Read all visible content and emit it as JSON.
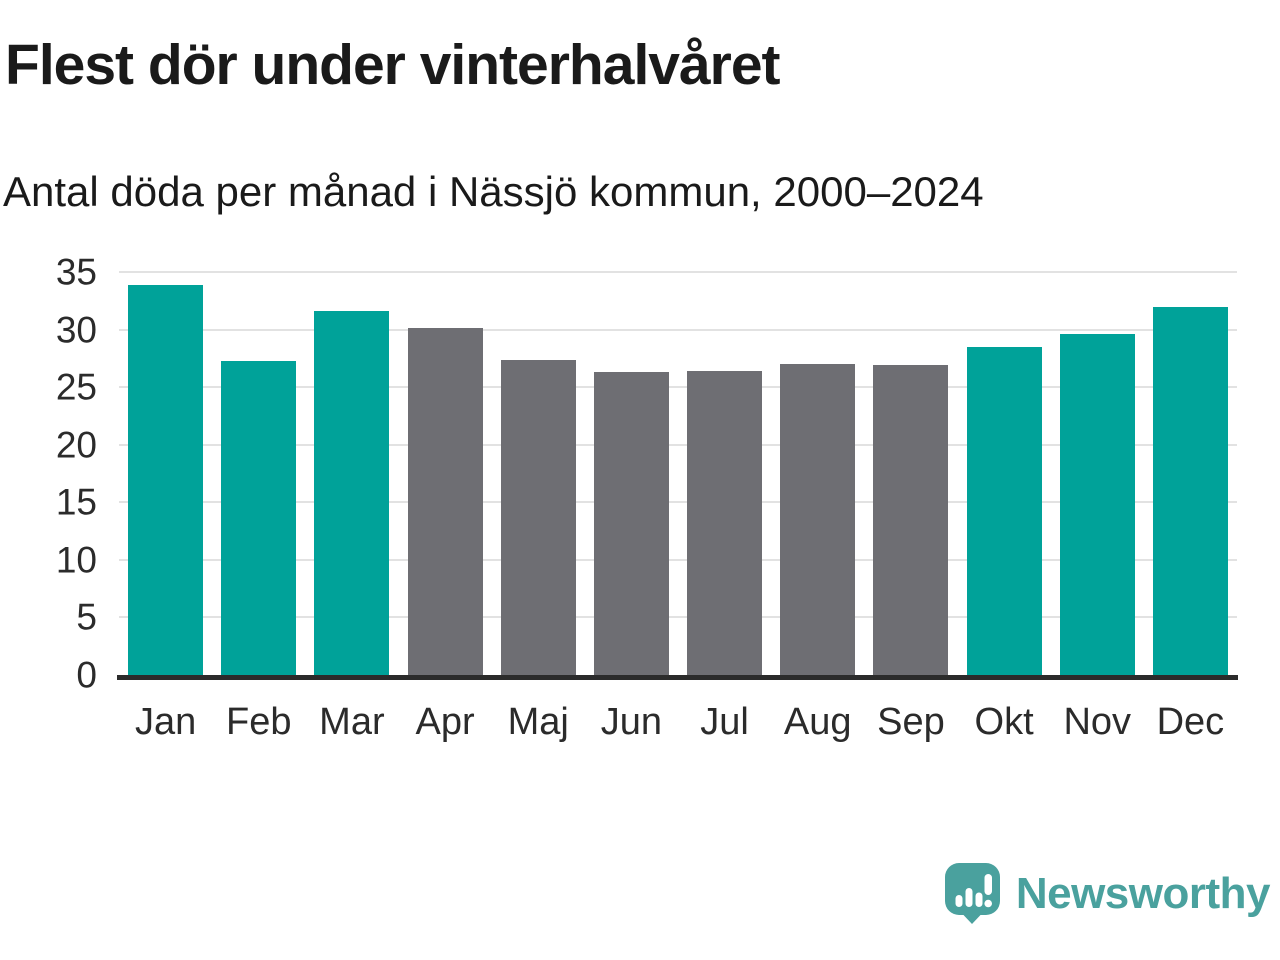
{
  "title": "Flest dör under vinterhalvåret",
  "subtitle": "Antal döda per månad i Nässjö kommun, 2000–2024",
  "chart_data": {
    "type": "bar",
    "categories": [
      "Jan",
      "Feb",
      "Mar",
      "Apr",
      "Maj",
      "Jun",
      "Jul",
      "Aug",
      "Sep",
      "Okt",
      "Nov",
      "Dec"
    ],
    "values": [
      33.9,
      27.3,
      31.6,
      30.1,
      27.4,
      26.3,
      26.4,
      27.0,
      26.9,
      28.5,
      29.6,
      32.0
    ],
    "bar_colors": [
      "teal",
      "teal",
      "teal",
      "gray",
      "gray",
      "gray",
      "gray",
      "gray",
      "gray",
      "teal",
      "teal",
      "teal"
    ],
    "title": "Flest dör under vinterhalvåret",
    "xlabel": "",
    "ylabel": "",
    "ylim": [
      0,
      35
    ],
    "yticks": [
      0,
      5,
      10,
      15,
      20,
      25,
      30,
      35
    ],
    "grid": "horizontal",
    "legend": "none"
  },
  "colors": {
    "teal": "#00a299",
    "gray": "#6e6e73",
    "gridline": "#e2e2e2",
    "axis": "#2b2b2b",
    "title_text": "#1a1a1a",
    "tick_text": "#2b2b2b",
    "brand_teal": "#4aa19e"
  },
  "branding": {
    "name": "Newsworthy",
    "logo_icon": "speech-bubble-bar-chart-icon"
  }
}
